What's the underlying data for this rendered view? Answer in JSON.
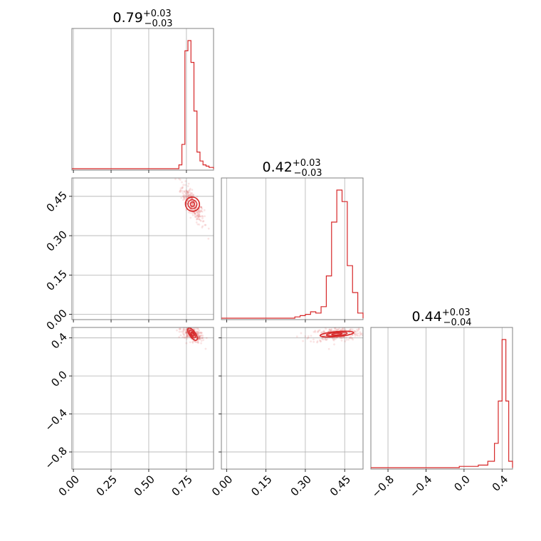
{
  "chart_data": {
    "type": "corner",
    "color": "#d62728",
    "parameters": [
      {
        "title": {
          "median": "0.79",
          "plus": "+0.03",
          "minus": "−0.03"
        },
        "range": [
          -0.01,
          0.93
        ],
        "ticks": [
          0.0,
          0.25,
          0.5,
          0.75
        ],
        "tick_labels": [
          "0.00",
          "0.25",
          "0.50",
          "0.75"
        ]
      },
      {
        "title": {
          "median": "0.42",
          "plus": "+0.03",
          "minus": "−0.03"
        },
        "range": [
          -0.02,
          0.52
        ],
        "ticks": [
          0.0,
          0.15,
          0.3,
          0.45
        ],
        "tick_labels": [
          "0.00",
          "0.15",
          "0.30",
          "0.45"
        ]
      },
      {
        "title": {
          "median": "0.44",
          "plus": "+0.03",
          "minus": "−0.04"
        },
        "range": [
          -0.98,
          0.51
        ],
        "ticks": [
          -0.8,
          -0.4,
          0.0,
          0.4
        ],
        "tick_labels": [
          "−0.8",
          "−0.4",
          "0.0",
          "0.4"
        ]
      }
    ],
    "histograms": [
      {
        "parameter": 0,
        "bin_edges": [
          0.7,
          0.72,
          0.74,
          0.76,
          0.78,
          0.8,
          0.82,
          0.84,
          0.86,
          0.88,
          0.9,
          0.93
        ],
        "counts": [
          0.03,
          0.19,
          0.92,
          1.0,
          0.83,
          0.45,
          0.13,
          0.06,
          0.03,
          0.02,
          0.01
        ]
      },
      {
        "parameter": 1,
        "bin_edges": [
          0.26,
          0.28,
          0.3,
          0.32,
          0.34,
          0.36,
          0.38,
          0.4,
          0.42,
          0.44,
          0.46,
          0.48,
          0.5,
          0.52
        ],
        "counts": [
          0.01,
          0.02,
          0.03,
          0.05,
          0.04,
          0.09,
          0.33,
          0.75,
          1.0,
          0.91,
          0.41,
          0.2,
          0.04
        ]
      },
      {
        "parameter": 2,
        "bin_edges": [
          -0.05,
          0.05,
          0.15,
          0.25,
          0.32,
          0.36,
          0.4,
          0.44,
          0.47,
          0.51
        ],
        "counts": [
          0.01,
          0.01,
          0.02,
          0.05,
          0.19,
          0.52,
          1.0,
          0.52,
          0.05
        ]
      }
    ],
    "joint": [
      {
        "x_param": 0,
        "y_param": 1,
        "center": [
          0.79,
          0.42
        ],
        "sd": [
          0.03,
          0.03
        ],
        "corr": -0.8
      },
      {
        "x_param": 0,
        "y_param": 2,
        "center": [
          0.79,
          0.44
        ],
        "sd": [
          0.03,
          0.035
        ],
        "corr": -0.6
      },
      {
        "x_param": 1,
        "y_param": 2,
        "center": [
          0.42,
          0.44
        ],
        "sd": [
          0.04,
          0.03
        ],
        "corr": 0.3
      }
    ],
    "grid": true
  }
}
